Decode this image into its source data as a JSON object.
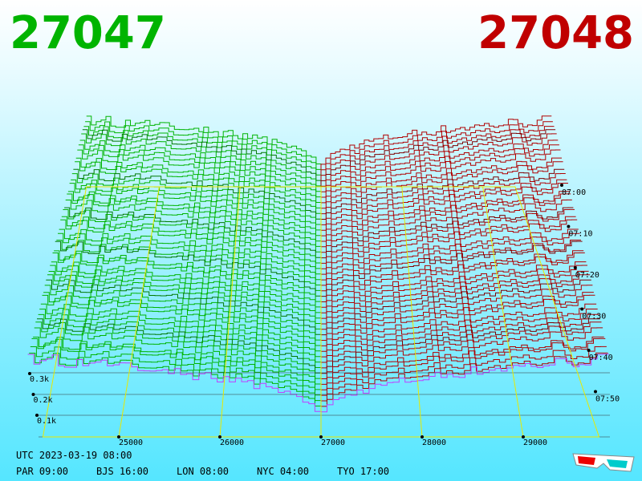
{
  "header": {
    "bid": "27047",
    "ask": "27048"
  },
  "axes": {
    "price_ticks": [
      "25000",
      "26000",
      "27000",
      "28000",
      "29000"
    ],
    "time_ticks": [
      "07:00",
      "07:10",
      "07:20",
      "07:30",
      "07:40",
      "07:50"
    ],
    "depth_ticks": [
      "0.3k",
      "0.2k",
      "0.1k"
    ]
  },
  "footer": {
    "utc": "UTC 2023-03-19 08:00",
    "clocks": [
      "PAR 09:00",
      "BJS 16:00",
      "LON 08:00",
      "NYC 04:00",
      "TYO 17:00"
    ]
  }
}
